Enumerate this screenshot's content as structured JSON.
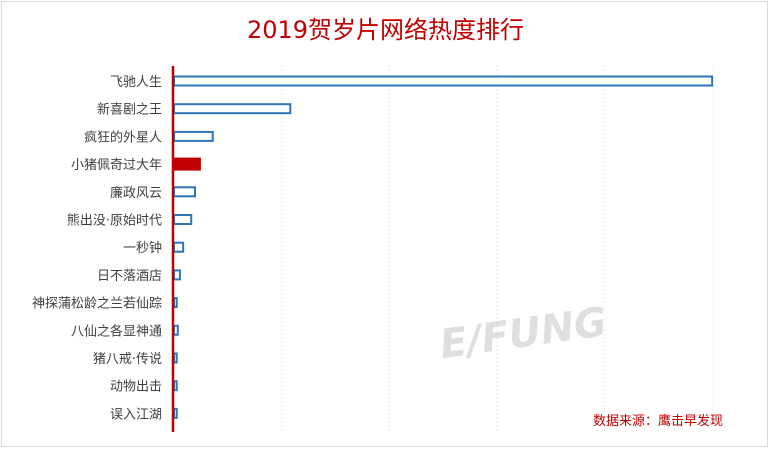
{
  "chart_data": {
    "type": "bar",
    "orientation": "horizontal",
    "title": "2019贺岁片网络热度排行",
    "xlabel": "",
    "ylabel": "",
    "categories": [
      "飞驰人生",
      "新喜剧之王",
      "疯狂的外星人",
      "小猪佩奇过大年",
      "廉政风云",
      "熊出没·原始时代",
      "一秒钟",
      "日不落酒店",
      "神探蒲松龄之兰若仙踪",
      "八仙之各显神通",
      "猪八戒·传说",
      "动物出击",
      "误入江湖"
    ],
    "values": [
      100,
      21.6,
      7.2,
      5.0,
      3.9,
      3.2,
      1.7,
      1.1,
      0.5,
      0.7,
      0.5,
      0.5,
      0.5
    ],
    "highlight_index": 3,
    "xlim": [
      0,
      110
    ],
    "grid": "vertical dotted",
    "colors": {
      "bar_outline": "#2e75b6",
      "highlight_fill": "#c00000",
      "axis": "#c00000",
      "title": "#c00000",
      "gridline": "#d9d9d9"
    }
  },
  "source_note": "数据来源：鹰击早发现",
  "watermark": "E/FUNG"
}
